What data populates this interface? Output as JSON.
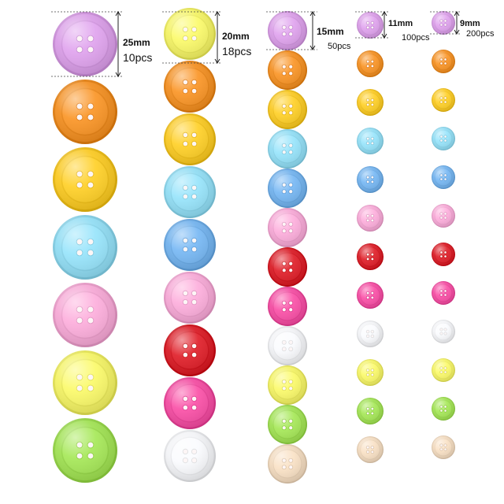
{
  "columns": [
    {
      "size_label": "25mm",
      "count_label": "10pcs",
      "colors": [
        "lavender",
        "orange",
        "yellow",
        "sky-blue",
        "pink",
        "lemon",
        "lime-green"
      ]
    },
    {
      "size_label": "20mm",
      "count_label": "18pcs",
      "colors": [
        "lemon",
        "orange",
        "yellow",
        "sky-blue",
        "blue",
        "pink",
        "red",
        "magenta",
        "white"
      ]
    },
    {
      "size_label": "15mm",
      "count_label": "50pcs",
      "colors": [
        "lavender",
        "orange",
        "yellow",
        "sky-blue",
        "blue",
        "pink",
        "red",
        "magenta",
        "white",
        "lemon",
        "lime-green",
        "beige"
      ]
    },
    {
      "size_label": "11mm",
      "count_label": "100pcs",
      "colors": [
        "lavender",
        "orange",
        "yellow",
        "sky-blue",
        "blue",
        "pink",
        "red",
        "magenta",
        "white",
        "lemon",
        "lime-green",
        "beige"
      ]
    },
    {
      "size_label": "9mm",
      "count_label": "200pcs",
      "colors": [
        "lavender",
        "orange",
        "yellow",
        "sky-blue",
        "blue",
        "pink",
        "red",
        "magenta",
        "white",
        "lemon",
        "lime-green",
        "beige"
      ]
    }
  ],
  "palette": {
    "lavender": "#d89be6",
    "orange": "#f28d1e",
    "yellow": "#f9c81f",
    "sky-blue": "#8fdcf3",
    "blue": "#6fb0ec",
    "pink": "#f5a6d4",
    "lemon": "#f3f262",
    "lime-green": "#9ee050",
    "red": "#d81721",
    "magenta": "#f2489f",
    "white": "#f2f3f6",
    "beige": "#f1d9bd"
  }
}
